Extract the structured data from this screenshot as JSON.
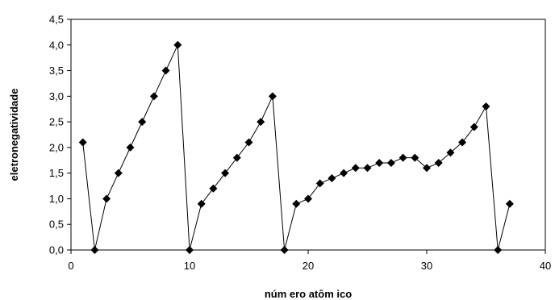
{
  "chart_data": {
    "type": "line",
    "title": "",
    "xlabel": "núm ero atôm ico",
    "ylabel": "eletronegatividade",
    "xlim": [
      0,
      40
    ],
    "ylim": [
      0,
      4.5
    ],
    "x_ticks": [
      "0",
      "10",
      "20",
      "30",
      "40"
    ],
    "y_ticks": [
      "0,0",
      "0,5",
      "1,0",
      "1,5",
      "2,0",
      "2,5",
      "3,0",
      "3,5",
      "4,0",
      "4,5"
    ],
    "grid": false,
    "legend": "none",
    "marker": "diamond",
    "line_color": "#000000",
    "series": [
      {
        "x": [
          1,
          2,
          3,
          4,
          5,
          6,
          7,
          8,
          9,
          10,
          11,
          12,
          13,
          14,
          15,
          16,
          17,
          18,
          19,
          20,
          21,
          22,
          23,
          24,
          25,
          26,
          27,
          28,
          29,
          30,
          31,
          32,
          33,
          34,
          35,
          36,
          37
        ],
        "y": [
          2.1,
          0,
          1.0,
          1.5,
          2.0,
          2.5,
          3.0,
          3.5,
          4.0,
          0,
          0.9,
          1.2,
          1.5,
          1.8,
          2.1,
          2.5,
          3.0,
          0,
          0.9,
          1.0,
          1.3,
          1.4,
          1.5,
          1.6,
          1.6,
          1.7,
          1.7,
          1.8,
          1.8,
          1.6,
          1.7,
          1.9,
          2.1,
          2.4,
          2.8,
          0,
          0.9
        ]
      }
    ]
  }
}
